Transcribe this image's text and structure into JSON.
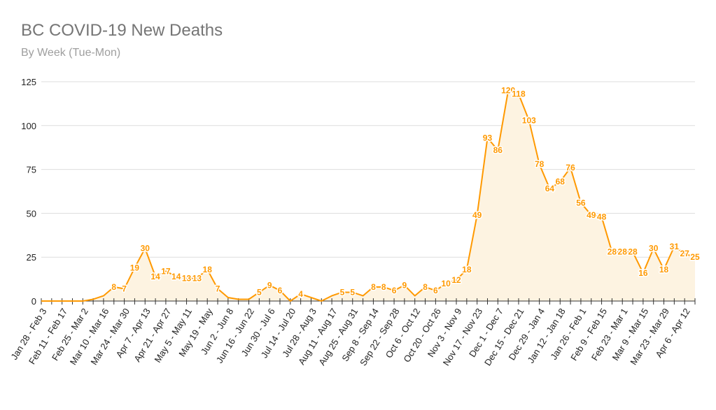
{
  "chart_data": {
    "type": "area",
    "title": "BC COVID-19 New Deaths",
    "subtitle": "By Week (Tue-Mon)",
    "xlabel": "",
    "ylabel": "",
    "ylim": [
      0,
      125
    ],
    "yticks": [
      0,
      25,
      50,
      75,
      100,
      125
    ],
    "grid": true,
    "legend": "none",
    "x_tick_labels": [
      "Jan 28 - Feb 3",
      "Feb 11 - Feb 17",
      "Feb 25 - Mar 2",
      "Mar 10 - Mar 16",
      "Mar 24 - Mar 30",
      "Apr 7 - Apr 13",
      "Apr 21 - Apr 27",
      "May 5 - May 11",
      "May 19 - May",
      "Jun 2 - Jun 8",
      "Jun 16 - Jun 22",
      "Jun 30 - Jul 6",
      "Jul 14 - Jul 20",
      "Jul 28 - Aug 3",
      "Aug 11 - Aug 17",
      "Aug 25 - Aug 31",
      "Sep 8 - Sep 14",
      "Sep 22 - Sep 28",
      "Oct 6 - Oct 12",
      "Oct 20 - Oct 26",
      "Nov 3 - Nov 9",
      "Nov 17 - Nov 23",
      "Dec 1 - Dec 7",
      "Dec 15 - Dec 21",
      "Dec 29 - Jan 4",
      "Jan 12 - Jan 18",
      "Jan 26 - Feb 1",
      "Feb 9 - Feb 15",
      "Feb 23 - Mar 1",
      "Mar 9 - Mar 15",
      "Mar 23 - Mar 29",
      "Apr 6 - Apr 12"
    ],
    "series": [
      {
        "name": "New Deaths",
        "color": "#ff9900",
        "fill": "#fdf3e1",
        "values": [
          0,
          0,
          0,
          0,
          0,
          1,
          3,
          8,
          7,
          19,
          30,
          14,
          17,
          14,
          13,
          13,
          18,
          7,
          2,
          1,
          1,
          5,
          9,
          6,
          0,
          4,
          2,
          0,
          3,
          5,
          5,
          3,
          8,
          8,
          6,
          9,
          3,
          8,
          6,
          10,
          12,
          18,
          49,
          93,
          86,
          120,
          118,
          103,
          78,
          64,
          68,
          76,
          56,
          49,
          48,
          28,
          28,
          28,
          16,
          30,
          18,
          31,
          27,
          25
        ]
      }
    ]
  }
}
